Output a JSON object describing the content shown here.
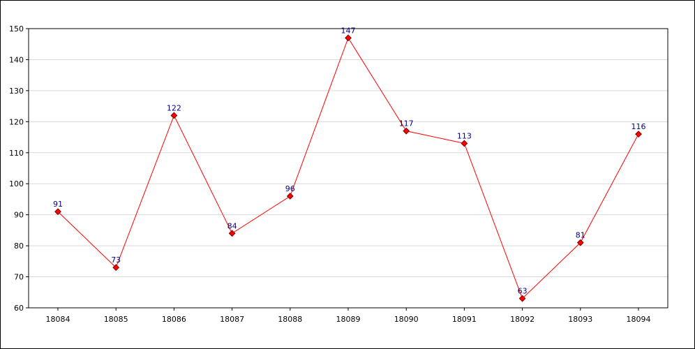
{
  "chart_data": {
    "type": "line",
    "title": "",
    "xlabel": "",
    "ylabel": "",
    "categories": [
      "18084",
      "18085",
      "18086",
      "18087",
      "18088",
      "18089",
      "18090",
      "18091",
      "18092",
      "18093",
      "18094"
    ],
    "series": [
      {
        "values": [
          91,
          73,
          122,
          84,
          96,
          147,
          117,
          113,
          63,
          81,
          116
        ]
      }
    ],
    "ylim": [
      60,
      150
    ],
    "yticks": [
      60,
      70,
      80,
      90,
      100,
      110,
      120,
      130,
      140,
      150
    ],
    "grid": true,
    "data_labels": true,
    "colors": {
      "line": "#ff0000",
      "marker_fill": "#ff0000",
      "marker_stroke": "#800000",
      "data_label": "#000080",
      "grid": "#d9d9d9",
      "axis": "#000000"
    }
  }
}
